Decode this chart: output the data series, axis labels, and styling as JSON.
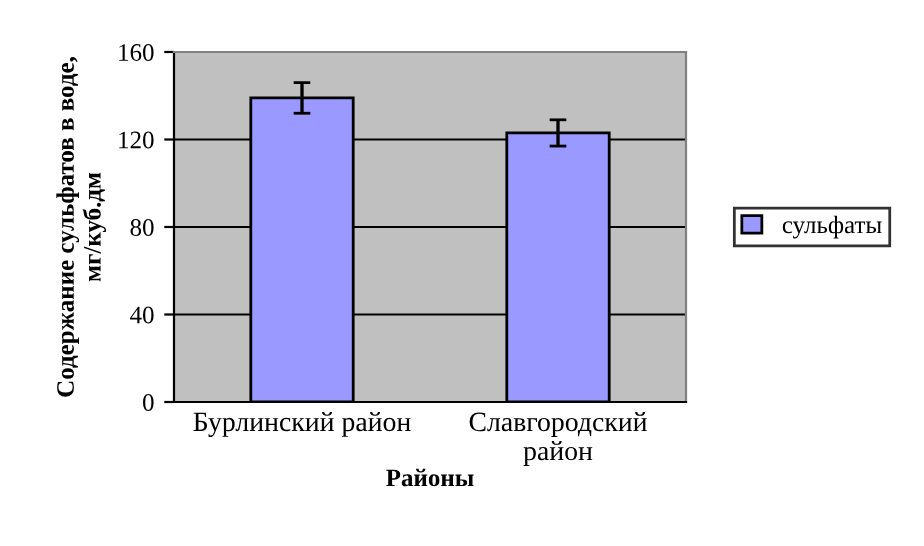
{
  "chart_data": {
    "type": "bar",
    "xlabel": "Районы",
    "ylabel": "Содержание сульфатов в воде,\nмг/куб.дм",
    "categories": [
      "Бурлинский район",
      "Славгородский\nрайон"
    ],
    "series": [
      {
        "name": "сульфаты",
        "color": "#9999ff",
        "values": [
          139,
          123
        ],
        "errors": [
          7,
          6
        ]
      }
    ],
    "ylim": [
      0,
      160
    ],
    "yticks": [
      0,
      40,
      80,
      120,
      160
    ],
    "grid": "y",
    "legend": "right"
  }
}
